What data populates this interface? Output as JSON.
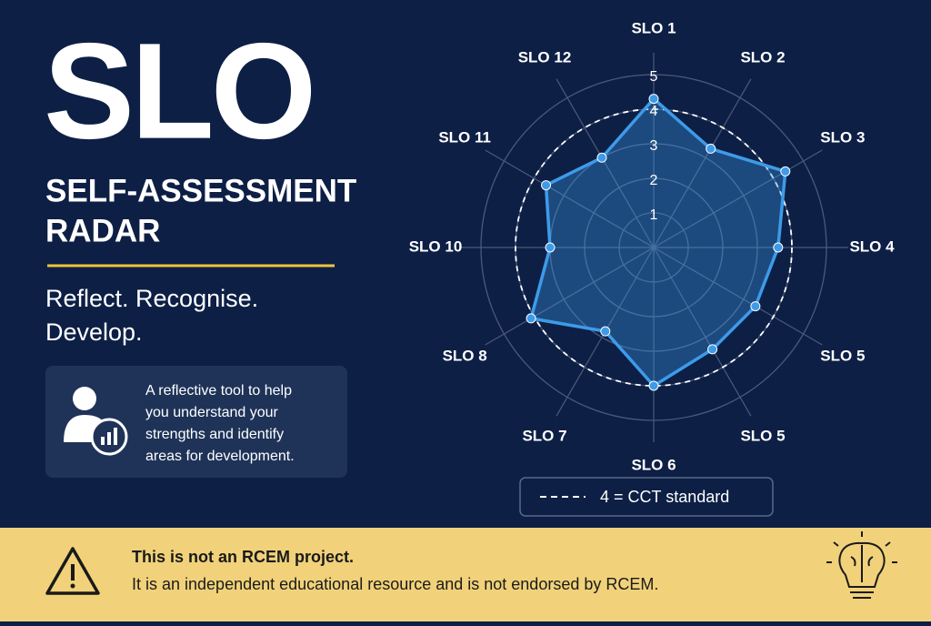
{
  "header": {
    "title": "SLO",
    "subtitle_lines": [
      "SELF-ASSESSMENT",
      "RADAR"
    ],
    "tagline_lines": [
      "Reflect. Recognise.",
      "Develop."
    ]
  },
  "info": {
    "lines": [
      "A reflective tool to help",
      "you understand your",
      "strengths and identify",
      "areas for development."
    ]
  },
  "notice": {
    "heading": "This is not an RCEM project.",
    "text": "It is an independent educational resource and is not endorsed by RCEM."
  },
  "chart_data": {
    "type": "radar",
    "categories": [
      "SLO 1",
      "SLO 2",
      "SLO 3",
      "SLO 4",
      "SLO 5",
      "SLO 5",
      "SLO 6",
      "SLO 7",
      "SLO 8",
      "SLO 10",
      "SLO 11",
      "SLO 12"
    ],
    "series": [
      {
        "color": "#3d9be9",
        "values": [
          4.3,
          3.3,
          4.4,
          3.6,
          3.4,
          3.4,
          4.0,
          2.8,
          4.1,
          3.0,
          3.6,
          3.0
        ]
      }
    ],
    "rlim": [
      0,
      5
    ],
    "rticks": [
      1,
      2,
      3,
      4,
      5
    ],
    "reference": {
      "value": 4,
      "label": "4 = CCT standard"
    }
  }
}
